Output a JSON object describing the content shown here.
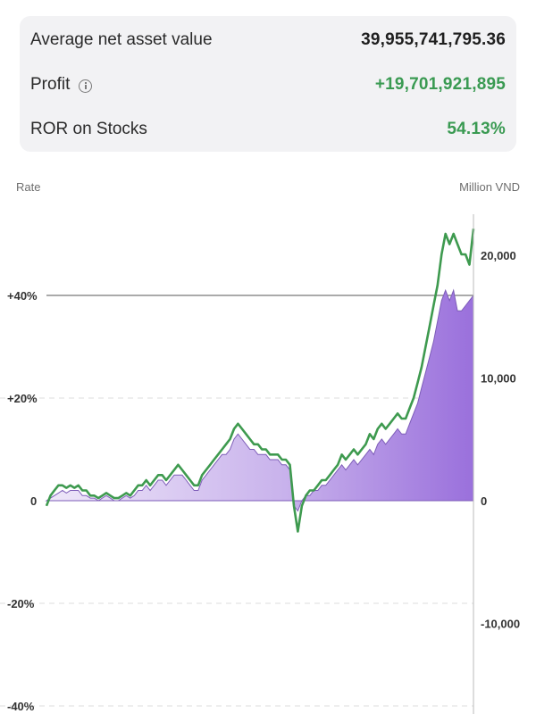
{
  "summary": {
    "rows": [
      {
        "label": "Average net asset value",
        "value": "39,955,741,795.36",
        "value_color": "#1f1f1f"
      },
      {
        "label": "Profit",
        "value": "+19,701,921,895",
        "value_color": "#3a9a52"
      },
      {
        "label": "ROR on Stocks",
        "value": "54.13%",
        "value_color": "#3a9a52"
      }
    ]
  },
  "colors": {
    "line": "#3e9a4f",
    "area_top": "#9a70dc",
    "area_light": "#efe8f9",
    "grid": "#dddddd",
    "baseline": "#555555"
  },
  "chart_data": {
    "type": "area",
    "left_axis": {
      "title": "Rate",
      "ticks": [
        {
          "value": 40,
          "label": "+40%"
        },
        {
          "value": 20,
          "label": "+20%"
        },
        {
          "value": 0,
          "label": "0"
        },
        {
          "value": -20,
          "label": "-20%"
        },
        {
          "value": -40,
          "label": "-40%"
        }
      ],
      "range": [
        -40,
        53
      ]
    },
    "right_axis": {
      "title": "Million VND",
      "ticks": [
        {
          "value": 20000,
          "label": "20,000"
        },
        {
          "value": 10000,
          "label": "10,000"
        },
        {
          "value": 0,
          "label": "0"
        },
        {
          "value": -10000,
          "label": "-10,000"
        }
      ]
    },
    "reference_line": {
      "value": 40
    },
    "series": [
      {
        "kind": "rate-line",
        "values": [
          -1,
          1,
          2,
          3,
          3,
          2.5,
          3,
          2.5,
          3,
          2,
          2,
          1,
          1,
          0.5,
          1,
          1.5,
          1,
          0.5,
          0.5,
          1,
          1.5,
          1,
          2,
          3,
          3,
          4,
          3,
          4,
          5,
          5,
          4,
          5,
          6,
          7,
          6,
          5,
          4,
          3,
          3,
          5,
          6,
          7,
          8,
          9,
          10,
          11,
          12,
          14,
          15,
          14,
          13,
          12,
          11,
          11,
          10,
          10,
          9,
          9,
          9,
          8,
          8,
          7,
          -1,
          -6,
          -1,
          1,
          2,
          2,
          3,
          4,
          4,
          5,
          6,
          7,
          9,
          8,
          9,
          10,
          9,
          10,
          11,
          13,
          12,
          14,
          15,
          14,
          15,
          16,
          17,
          16,
          16,
          18,
          20,
          23,
          26,
          30,
          34,
          38,
          42,
          48,
          52,
          50,
          52,
          50,
          48,
          48,
          46,
          53
        ]
      },
      {
        "kind": "profit-area",
        "values": [
          0,
          0.5,
          1,
          1.5,
          2,
          1.5,
          2,
          2,
          2,
          1,
          1,
          0.5,
          0.5,
          0,
          0.5,
          1,
          0.5,
          0,
          0,
          0.5,
          1,
          0.5,
          1,
          2,
          2,
          3,
          2,
          3,
          4,
          4,
          3,
          4,
          5,
          5,
          5,
          4,
          3,
          2,
          2,
          4,
          5,
          6,
          7,
          8,
          9,
          9,
          10,
          12,
          13,
          12,
          11,
          10,
          10,
          9,
          9,
          9,
          8,
          8,
          8,
          7,
          7,
          6,
          -1,
          -2,
          0,
          1,
          1,
          2,
          2,
          3,
          3,
          4,
          5,
          6,
          7,
          6,
          7,
          8,
          7,
          8,
          9,
          10,
          9,
          11,
          12,
          11,
          12,
          13,
          14,
          13,
          13,
          15,
          17,
          19,
          22,
          25,
          28,
          31,
          35,
          39,
          41,
          39,
          41,
          37,
          37,
          38,
          39,
          40
        ]
      }
    ]
  }
}
